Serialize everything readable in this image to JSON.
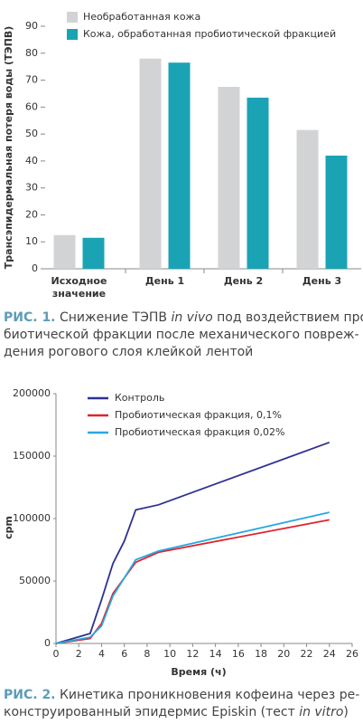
{
  "chart_data": [
    {
      "type": "bar",
      "y_label": "Трансэпидермальная потеря воды (ТЭПВ)",
      "categories": [
        "Исходное\nзначение",
        "День 1",
        "День 2",
        "День 3"
      ],
      "series": [
        {
          "name": "Необработанная кожа",
          "color": "#d2d3d5",
          "values": [
            12.5,
            78,
            67.5,
            51.5
          ]
        },
        {
          "name": "Кожа, обработанная пробиотической фракцией",
          "color": "#1aa3b5",
          "values": [
            11.5,
            76.5,
            63.5,
            42
          ]
        }
      ],
      "ylim": [
        0,
        90
      ],
      "yticks": [
        0,
        10,
        20,
        30,
        40,
        50,
        60,
        70,
        80,
        90
      ],
      "caption": [
        [
          {
            "text": "РИС. 1.",
            "style": "label"
          },
          {
            "text": " Снижение ТЭПВ "
          },
          {
            "text": "in vivo",
            "style": "italic"
          },
          {
            "text": " под воздействием про-"
          }
        ],
        [
          {
            "text": "биотической фракции после механического повреж-"
          }
        ],
        [
          {
            "text": "дения рогового слоя клейкой лентой"
          }
        ]
      ]
    },
    {
      "type": "line",
      "x_label": "Время (ч)",
      "y_label": "cpm",
      "series": [
        {
          "name": "Контроль",
          "color": "#2e3192",
          "x": [
            0,
            3,
            4,
            5,
            6,
            7,
            9,
            24
          ],
          "values": [
            0,
            8000,
            35000,
            64000,
            82000,
            107000,
            111000,
            161000
          ]
        },
        {
          "name": "Пробиотическая фракция, 0,1%",
          "color": "#e0242b",
          "x": [
            0,
            3,
            4,
            5,
            7,
            9,
            24
          ],
          "values": [
            0,
            4000,
            16000,
            40000,
            65000,
            73000,
            99000
          ]
        },
        {
          "name": "Пробиотическая фракция 0,02%",
          "color": "#29a8e0",
          "x": [
            0,
            3,
            4,
            5,
            7,
            9,
            24
          ],
          "values": [
            0,
            5000,
            14000,
            38000,
            67000,
            74000,
            105000
          ]
        }
      ],
      "xlim": [
        0,
        26
      ],
      "xticks": [
        0,
        2,
        4,
        6,
        8,
        10,
        12,
        14,
        16,
        18,
        20,
        22,
        24,
        26
      ],
      "ylim": [
        0,
        200000
      ],
      "yticks": [
        0,
        50000,
        100000,
        150000,
        200000
      ],
      "caption": [
        [
          {
            "text": "РИС. 2.",
            "style": "label"
          },
          {
            "text": " Кинетика проникновения кофеина через ре-"
          }
        ],
        [
          {
            "text": "конструированный эпидермис Episkin (тест "
          },
          {
            "text": "in vitro",
            "style": "italic"
          },
          {
            "text": ")"
          }
        ]
      ]
    }
  ]
}
